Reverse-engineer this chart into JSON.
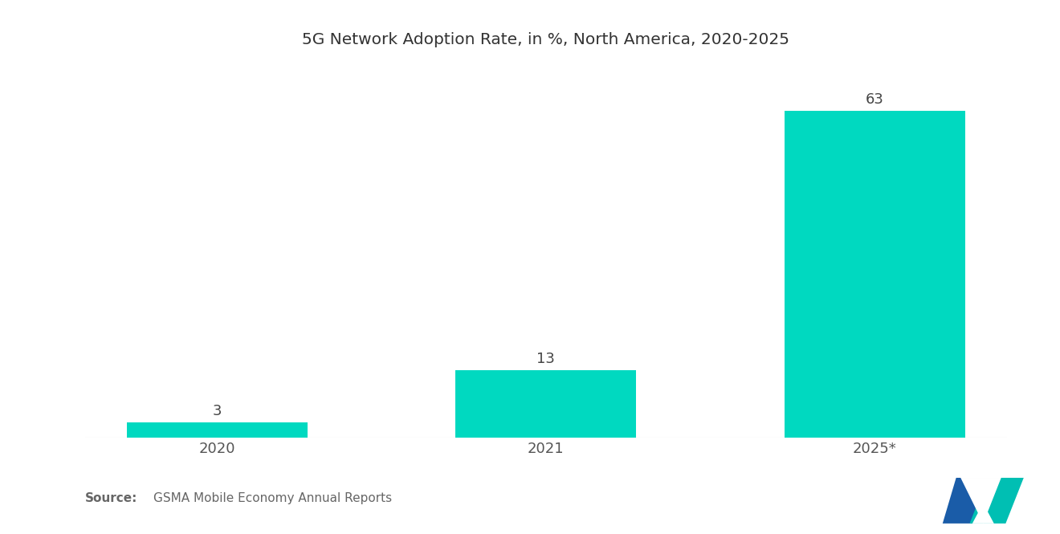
{
  "title": "5G Network Adoption Rate, in %, North America, 2020-2025",
  "categories": [
    "2020",
    "2021",
    "2025*"
  ],
  "values": [
    3,
    13,
    63
  ],
  "bar_color": "#00D9C0",
  "background_color": "#ffffff",
  "title_fontsize": 14.5,
  "label_fontsize": 13,
  "tick_fontsize": 13,
  "source_bold": "Source:",
  "source_text": "  GSMA Mobile Economy Annual Reports",
  "ylim": [
    0,
    72
  ],
  "bar_width": 0.55,
  "logo_blue": "#1A5CA8",
  "logo_teal": "#00BFB3"
}
